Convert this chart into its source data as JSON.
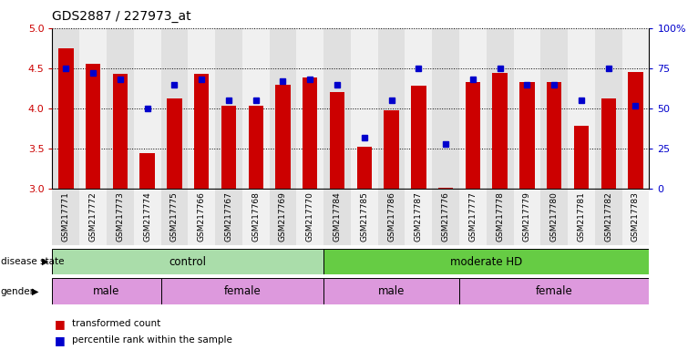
{
  "title": "GDS2887 / 227973_at",
  "samples": [
    "GSM217771",
    "GSM217772",
    "GSM217773",
    "GSM217774",
    "GSM217775",
    "GSM217766",
    "GSM217767",
    "GSM217768",
    "GSM217769",
    "GSM217770",
    "GSM217784",
    "GSM217785",
    "GSM217786",
    "GSM217787",
    "GSM217776",
    "GSM217777",
    "GSM217778",
    "GSM217779",
    "GSM217780",
    "GSM217781",
    "GSM217782",
    "GSM217783"
  ],
  "bar_values": [
    4.75,
    4.55,
    4.43,
    3.45,
    4.12,
    4.43,
    4.03,
    4.03,
    4.3,
    4.38,
    4.2,
    3.52,
    3.98,
    4.28,
    3.01,
    4.33,
    4.44,
    4.33,
    4.33,
    3.78,
    4.12,
    4.45
  ],
  "dot_values": [
    75,
    72,
    68,
    50,
    65,
    68,
    55,
    55,
    67,
    68,
    65,
    32,
    55,
    75,
    28,
    68,
    75,
    65,
    65,
    55,
    75,
    52
  ],
  "ylim_left": [
    3.0,
    5.0
  ],
  "ylim_right": [
    0,
    100
  ],
  "yticks_left": [
    3.0,
    3.5,
    4.0,
    4.5,
    5.0
  ],
  "yticks_right": [
    0,
    25,
    50,
    75,
    100
  ],
  "bar_color": "#cc0000",
  "dot_color": "#0000cc",
  "background_color": "#ffffff",
  "disease_groups": [
    {
      "label": "control",
      "start": 0,
      "end": 10,
      "color": "#aaddaa"
    },
    {
      "label": "moderate HD",
      "start": 10,
      "end": 22,
      "color": "#66cc44"
    }
  ],
  "gender_groups": [
    {
      "label": "male",
      "start": 0,
      "end": 4,
      "color": "#dd99dd"
    },
    {
      "label": "female",
      "start": 4,
      "end": 10,
      "color": "#dd99dd"
    },
    {
      "label": "male",
      "start": 10,
      "end": 15,
      "color": "#dd99dd"
    },
    {
      "label": "female",
      "start": 15,
      "end": 22,
      "color": "#dd99dd"
    }
  ]
}
